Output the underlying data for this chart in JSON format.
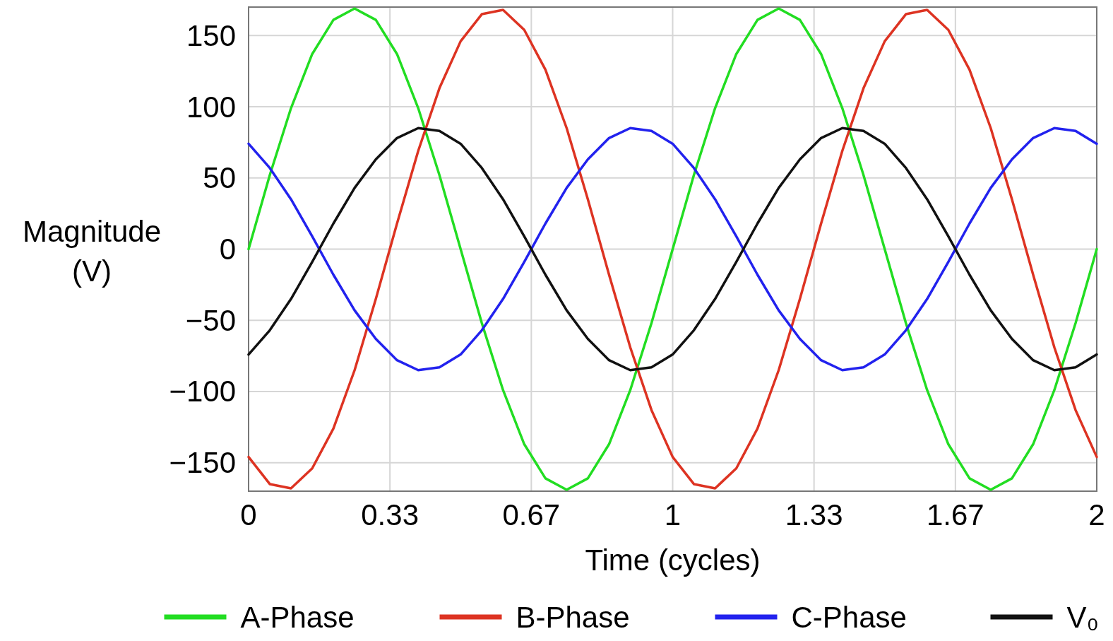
{
  "chart_data": {
    "type": "line",
    "xlabel": "Time (cycles)",
    "ylabel": "Magnitude (V)",
    "x": [
      0,
      0.05,
      0.1,
      0.15,
      0.2,
      0.25,
      0.3,
      0.35,
      0.4,
      0.45,
      0.5,
      0.55,
      0.6,
      0.65,
      0.7,
      0.75,
      0.8,
      0.85,
      0.9,
      0.95,
      1,
      1.05,
      1.1,
      1.15,
      1.2,
      1.25,
      1.3,
      1.35,
      1.4,
      1.45,
      1.5,
      1.55,
      1.6,
      1.65,
      1.7,
      1.75,
      1.8,
      1.85,
      1.9,
      1.95,
      2
    ],
    "series": [
      {
        "name": "A-Phase",
        "color": "#22dd22",
        "values": [
          0,
          52,
          99,
          137,
          161,
          169,
          161,
          137,
          99,
          52,
          0,
          -52,
          -99,
          -137,
          -161,
          -169,
          -161,
          -137,
          -99,
          -52,
          0,
          52,
          99,
          137,
          161,
          169,
          161,
          137,
          99,
          52,
          0,
          -52,
          -99,
          -137,
          -161,
          -169,
          -161,
          -137,
          -99,
          -52,
          0
        ]
      },
      {
        "name": "B-Phase",
        "color": "#dd3322",
        "values": [
          -146,
          -165,
          -168,
          -154,
          -126,
          -85,
          -35,
          18,
          69,
          113,
          146,
          165,
          168,
          154,
          126,
          85,
          35,
          -18,
          -69,
          -113,
          -146,
          -165,
          -168,
          -154,
          -126,
          -85,
          -35,
          18,
          69,
          113,
          146,
          165,
          168,
          154,
          126,
          85,
          35,
          -18,
          -69,
          -113,
          -146
        ]
      },
      {
        "name": "C-Phase",
        "color": "#2222ee",
        "values": [
          74,
          57,
          35,
          9,
          -18,
          -43,
          -63,
          -78,
          -85,
          -83,
          -74,
          -57,
          -35,
          -9,
          18,
          43,
          63,
          78,
          85,
          83,
          74,
          57,
          35,
          9,
          -18,
          -43,
          -63,
          -78,
          -85,
          -83,
          -74,
          -57,
          -35,
          -9,
          18,
          43,
          63,
          78,
          85,
          83,
          74
        ]
      },
      {
        "name": "V₀",
        "color": "#111111",
        "values": [
          -74,
          -57,
          -35,
          -9,
          18,
          43,
          63,
          78,
          85,
          83,
          74,
          57,
          35,
          9,
          -18,
          -43,
          -63,
          -78,
          -85,
          -83,
          -74,
          -57,
          -35,
          -9,
          18,
          43,
          63,
          78,
          85,
          83,
          74,
          57,
          35,
          9,
          -18,
          -43,
          -63,
          -78,
          -85,
          -83,
          -74
        ]
      }
    ],
    "xlim": [
      0,
      2
    ],
    "xticks": [
      0,
      {
        "value": 0.3333,
        "label": "0.33"
      },
      {
        "value": 0.6667,
        "label": "0.67"
      },
      1,
      {
        "value": 1.3333,
        "label": "1.33"
      },
      {
        "value": 1.6667,
        "label": "1.67"
      },
      2
    ],
    "ylim": [
      -170,
      170
    ],
    "yticks": [
      -150,
      -100,
      -50,
      0,
      50,
      100,
      150
    ],
    "grid": true,
    "legend": "bottom",
    "marker": "none",
    "line_style": "solid"
  }
}
